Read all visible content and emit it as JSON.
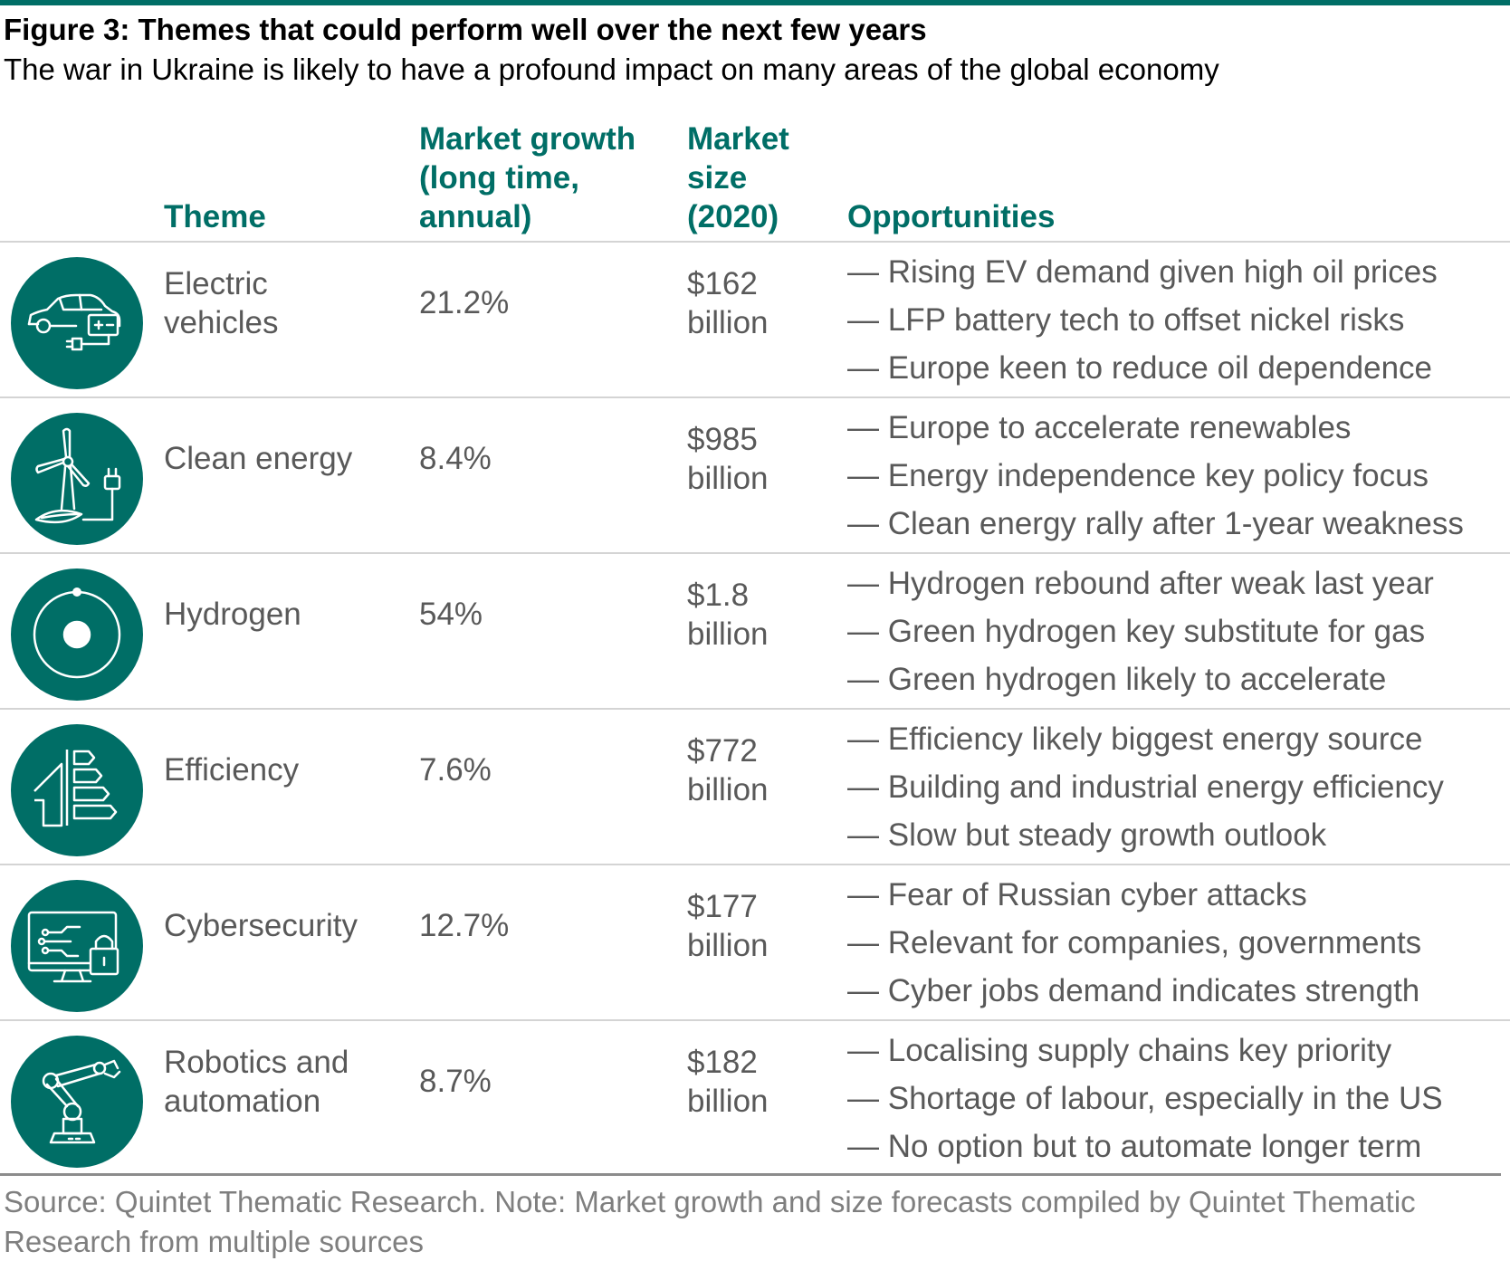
{
  "figure": {
    "title": "Figure 3: Themes that could perform well over the next few years",
    "subtitle": "The war in Ukraine is likely to have a profound impact on many areas of the global economy"
  },
  "headers": {
    "theme": "Theme",
    "growth": "Market growth (long time, annual)",
    "size": "Market size (2020)",
    "opportunities": "Opportunities"
  },
  "rows": [
    {
      "icon": "electric-car-icon",
      "theme": "Electric vehicles",
      "growth": "21.2%",
      "size": "$162 billion",
      "opportunities": [
        "— Rising EV demand given high oil prices",
        "— LFP battery tech to offset nickel risks",
        "— Europe keen to reduce oil dependence"
      ]
    },
    {
      "icon": "wind-turbine-icon",
      "theme": "Clean energy",
      "growth": "8.4%",
      "size": "$985 billion",
      "opportunities": [
        "— Europe to accelerate renewables",
        "— Energy independence key policy focus",
        "— Clean energy rally after 1-year weakness"
      ]
    },
    {
      "icon": "hydrogen-atom-icon",
      "theme": "Hydrogen",
      "growth": "54%",
      "size": "$1.8 billion",
      "opportunities": [
        "— Hydrogen rebound after weak last year",
        "— Green hydrogen key substitute for gas",
        "— Green hydrogen likely to accelerate"
      ]
    },
    {
      "icon": "efficiency-house-icon",
      "theme": "Efficiency",
      "growth": "7.6%",
      "size": "$772 billion",
      "opportunities": [
        "— Efficiency likely biggest energy source",
        "— Building and industrial energy efficiency",
        "— Slow but steady growth outlook"
      ]
    },
    {
      "icon": "monitor-lock-icon",
      "theme": "Cybersecurity",
      "growth": "12.7%",
      "size": "$177 billion",
      "opportunities": [
        "— Fear of Russian cyber attacks",
        "— Relevant for companies, governments",
        "— Cyber jobs demand indicates strength"
      ]
    },
    {
      "icon": "robot-arm-icon",
      "theme": "Robotics and automation",
      "growth": "8.7%",
      "size": "$182 billion",
      "opportunities": [
        "— Localising supply chains key priority",
        "— Shortage of labour, especially in the US",
        "— No option but to automate longer term"
      ]
    }
  ],
  "source": "Source: Quintet Thematic Research. Note: Market growth and size forecasts compiled by Quintet Thematic Research from multiple sources",
  "colors": {
    "accent": "#006e66",
    "body_text": "#595959",
    "rule": "#d4d4d4"
  }
}
